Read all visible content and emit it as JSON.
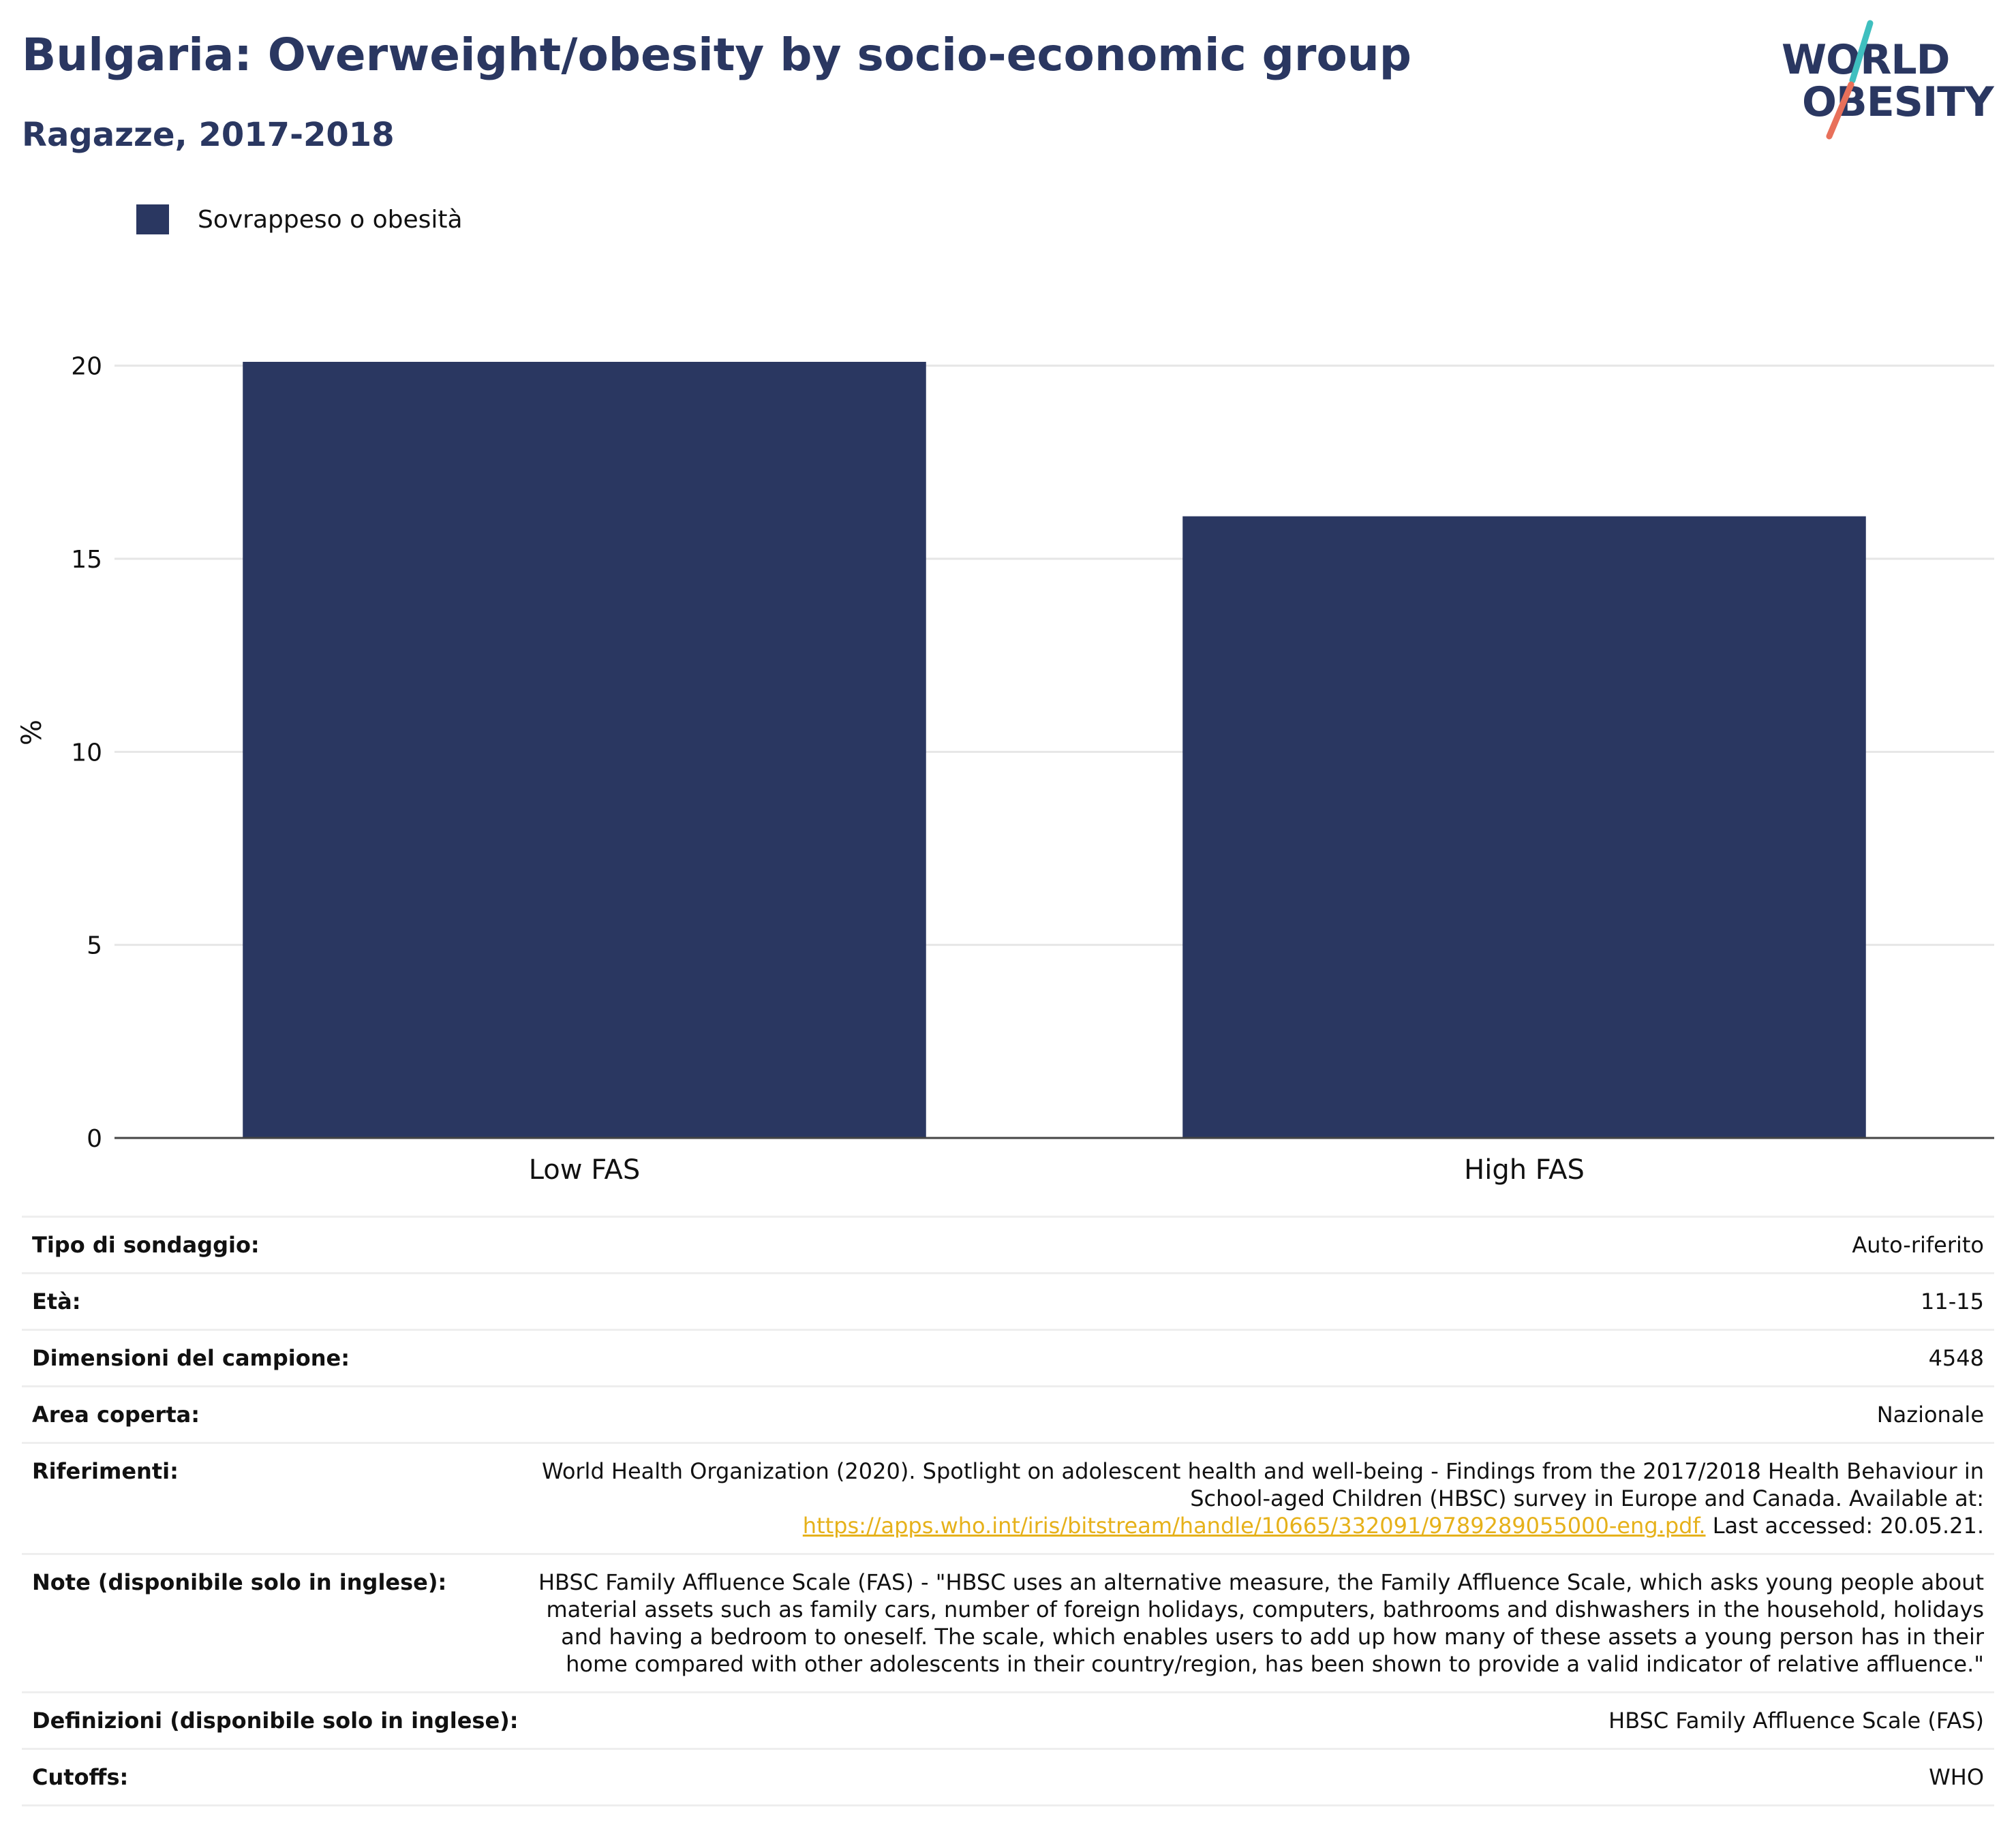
{
  "header": {
    "title": "Bulgaria: Overweight/obesity by socio-economic group",
    "subtitle": "Ragazze, 2017-2018"
  },
  "logo": {
    "line1": "WORLD",
    "line2": "OBESITY",
    "colors": {
      "text": "#2a3761",
      "slash_top": "#3fbfbf",
      "slash_bottom": "#e8705a"
    }
  },
  "legend": {
    "label": "Sovrappeso o obesità",
    "color": "#2a3761"
  },
  "chart_data": {
    "type": "bar",
    "categories": [
      "Low FAS",
      "High FAS"
    ],
    "series": [
      {
        "name": "Sovrappeso o obesità",
        "values": [
          20.1,
          16.1
        ],
        "color": "#2a3761"
      }
    ],
    "xlabel": "",
    "ylabel": "%",
    "ylim": [
      0,
      21
    ],
    "yticks": [
      0,
      5,
      10,
      15,
      20
    ],
    "grid": true,
    "legend_position": "top-left"
  },
  "meta": {
    "survey_type": {
      "label": "Tipo di sondaggio:",
      "value": "Auto-riferito"
    },
    "age": {
      "label": "Età:",
      "value": "11-15"
    },
    "sample_size": {
      "label": "Dimensioni del campione:",
      "value": "4548"
    },
    "area": {
      "label": "Area coperta:",
      "value": "Nazionale"
    },
    "references": {
      "label": "Riferimenti:",
      "text_before": "World Health Organization (2020). Spotlight on adolescent health and well-being - Findings from the 2017/2018 Health Behaviour in School-aged Children (HBSC) survey in Europe and Canada. Available at:",
      "link": "https://apps.who.int/iris/bitstream/handle/10665/332091/9789289055000-eng.pdf.",
      "text_after": "Last accessed: 20.05.21."
    },
    "notes": {
      "label": "Note (disponibile solo in inglese):",
      "value": "HBSC Family Affluence Scale (FAS) - \"HBSC uses an alternative measure, the Family Affluence Scale, which asks young people about material assets such as family cars, number of foreign holidays, computers, bathrooms and dishwashers in the household, holidays and having a bedroom to oneself. The scale, which enables users to add up how many of these assets a young person has in their home compared with other adolescents in their country/region, has been shown to provide a valid indicator of relative affluence.\""
    },
    "definitions": {
      "label": "Definizioni (disponibile solo in inglese):",
      "value": "HBSC Family Affluence Scale (FAS)"
    },
    "cutoffs": {
      "label": "Cutoffs:",
      "value": "WHO"
    }
  }
}
